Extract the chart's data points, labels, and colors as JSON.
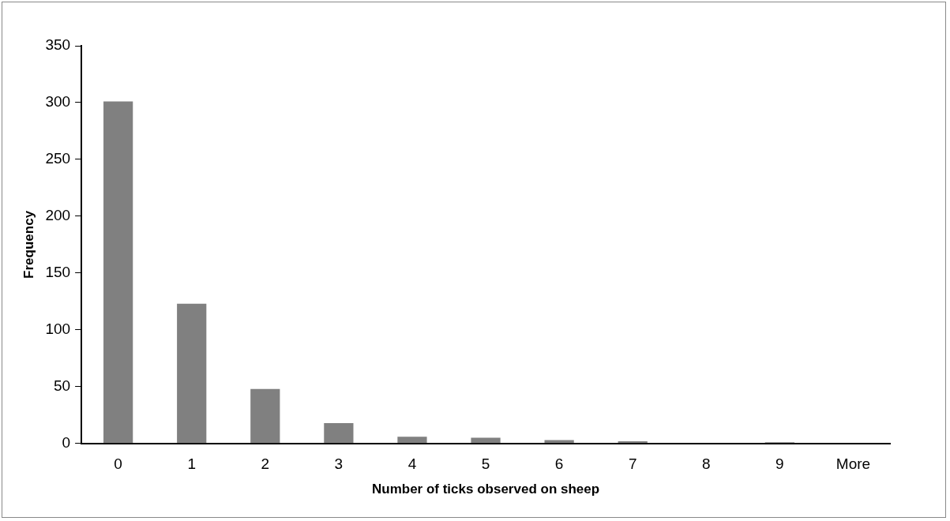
{
  "chart_data": {
    "type": "bar",
    "xlabel": "Number of ticks observed on sheep",
    "ylabel": "Frequency",
    "categories": [
      "0",
      "1",
      "2",
      "3",
      "4",
      "5",
      "6",
      "7",
      "8",
      "9",
      "More"
    ],
    "values": [
      301,
      123,
      48,
      18,
      6,
      5,
      3,
      2,
      0,
      1,
      0
    ],
    "color": "#808080",
    "ylim": [
      0,
      350
    ],
    "yticks": [
      0,
      50,
      100,
      150,
      200,
      250,
      300,
      350
    ],
    "grid": false,
    "legend": false
  }
}
